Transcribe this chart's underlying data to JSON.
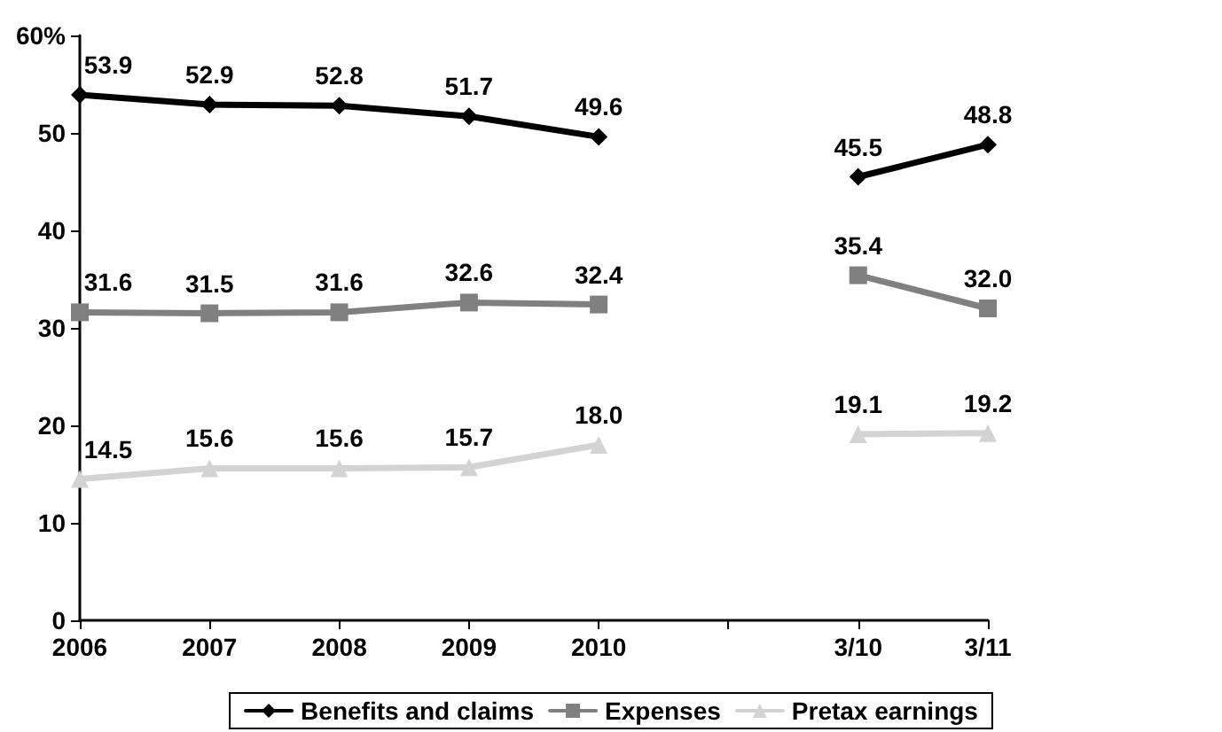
{
  "chart_data": {
    "type": "line",
    "categories": [
      "2006",
      "2007",
      "2008",
      "2009",
      "2010",
      null,
      "3/10",
      "3/11"
    ],
    "series": [
      {
        "name": "Benefits and claims",
        "color": "#000000",
        "marker": "diamond",
        "values": [
          53.9,
          52.9,
          52.8,
          51.7,
          49.6,
          null,
          45.5,
          48.8
        ],
        "value_labels": [
          "53.9",
          "52.9",
          "52.8",
          "51.7",
          "49.6",
          null,
          "45.5",
          "48.8"
        ]
      },
      {
        "name": "Expenses",
        "color": "#808080",
        "marker": "square",
        "values": [
          31.6,
          31.5,
          31.6,
          32.6,
          32.4,
          null,
          35.4,
          32.0
        ],
        "value_labels": [
          "31.6",
          "31.5",
          "31.6",
          "32.6",
          "32.4",
          null,
          "35.4",
          "32.0"
        ]
      },
      {
        "name": "Pretax earnings",
        "color": "#d3d3d3",
        "marker": "triangle",
        "values": [
          14.5,
          15.6,
          15.6,
          15.7,
          18.0,
          null,
          19.1,
          19.2
        ],
        "value_labels": [
          "14.5",
          "15.6",
          "15.6",
          "15.7",
          "18.0",
          null,
          "19.1",
          "19.2"
        ]
      }
    ],
    "ylim": [
      0,
      60
    ],
    "yticks": [
      0,
      10,
      20,
      30,
      40,
      50,
      {
        "value": 60,
        "label": "60%"
      }
    ],
    "grid": false,
    "legend": "bottom",
    "line_style": "solid"
  }
}
